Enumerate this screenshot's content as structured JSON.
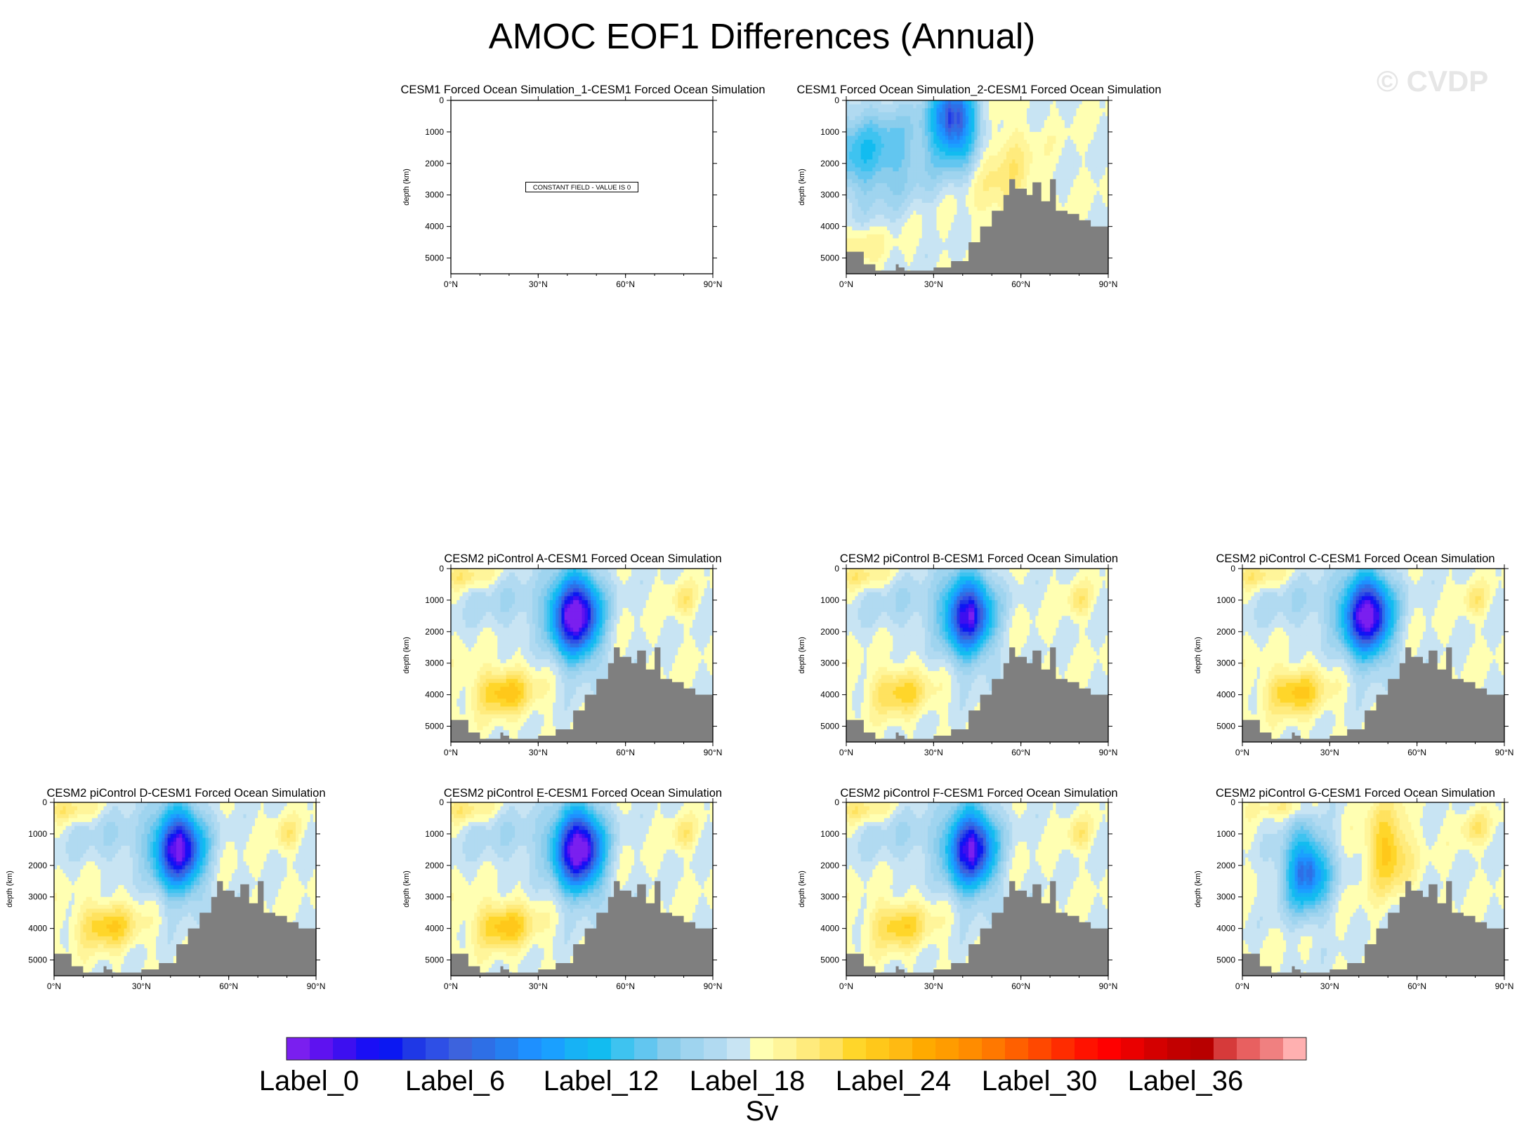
{
  "title": "AMOC EOF1 Differences (Annual)",
  "watermark": "© CVDP",
  "chart_data": {
    "type": "heatmap",
    "title": "AMOC EOF1 Differences (Annual)",
    "xlabel": "",
    "ylabel": "depth (km)",
    "x_ticks": [
      "0°N",
      "30°N",
      "60°N",
      "90°N"
    ],
    "y_ticks": [
      "0",
      "1000",
      "2000",
      "3000",
      "4000",
      "5000"
    ],
    "xlim": [
      0,
      90
    ],
    "ylim": [
      5500,
      0
    ],
    "colorbar": {
      "units": "Sv",
      "labels": [
        "Label_0",
        "Label_6",
        "Label_12",
        "Label_18",
        "Label_24",
        "Label_30",
        "Label_36"
      ],
      "colors": [
        "#7a1fef",
        "#5e12f0",
        "#3d0ff0",
        "#1a0ff5",
        "#0b18f2",
        "#1f38e6",
        "#2e4fe6",
        "#3d63dd",
        "#2e6fe6",
        "#257ff0",
        "#1e90ff",
        "#1aa0ff",
        "#17b2f5",
        "#12bcf0",
        "#3ec3f0",
        "#62c6f0",
        "#8acdec",
        "#9fd4ef",
        "#b1daf1",
        "#c8e4f3",
        "#ffffb2",
        "#fff59a",
        "#ffeb7d",
        "#ffe25f",
        "#ffd62a",
        "#ffc81a",
        "#ffba12",
        "#ffaa00",
        "#ff9c00",
        "#ff8c00",
        "#ff7800",
        "#ff6000",
        "#ff4800",
        "#ff2c00",
        "#ff1200",
        "#ff0000",
        "#ea0000",
        "#d40000",
        "#c20000",
        "#b80000",
        "#d63a3a",
        "#e86060",
        "#f08080",
        "#ffb0b0"
      ]
    },
    "panels": [
      {
        "title": "CESM1 Forced Ocean Simulation_1-CESM1 Forced Ocean Simulation",
        "constant": true,
        "message": "CONSTANT FIELD - VALUE IS 0"
      },
      {
        "title": "CESM1 Forced Ocean Simulation_2-CESM1 Forced Ocean Simulation",
        "cx": 37,
        "cy": 600,
        "strength": 0.65,
        "variant": "b"
      },
      {
        "title": "CESM2 piControl A-CESM1 Forced Ocean Simulation",
        "cx": 43,
        "cy": 1500,
        "strength": 1.0,
        "variant": "a"
      },
      {
        "title": "CESM2 piControl B-CESM1 Forced Ocean Simulation",
        "cx": 42,
        "cy": 1500,
        "strength": 0.8,
        "variant": "a"
      },
      {
        "title": "CESM2 piControl C-CESM1 Forced Ocean Simulation",
        "cx": 43,
        "cy": 1500,
        "strength": 0.95,
        "variant": "a"
      },
      {
        "title": "CESM2 piControl D-CESM1 Forced Ocean Simulation",
        "cx": 43,
        "cy": 1500,
        "strength": 0.9,
        "variant": "a"
      },
      {
        "title": "CESM2 piControl E-CESM1 Forced Ocean Simulation",
        "cx": 44,
        "cy": 1500,
        "strength": 1.0,
        "variant": "a"
      },
      {
        "title": "CESM2 piControl F-CESM1 Forced Ocean Simulation",
        "cx": 43,
        "cy": 1500,
        "strength": 0.85,
        "variant": "a"
      },
      {
        "title": "CESM2 piControl G-CESM1 Forced Ocean Simulation",
        "cx": 22,
        "cy": 2200,
        "strength": 0.55,
        "variant": "g"
      }
    ]
  }
}
